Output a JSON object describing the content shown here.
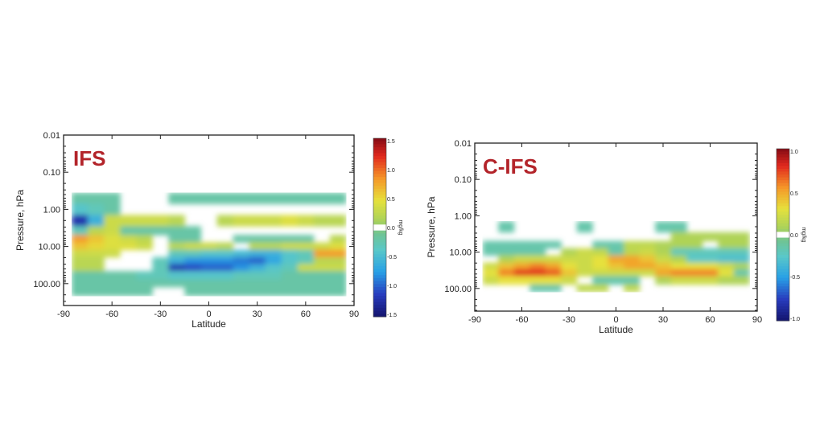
{
  "chart_data": [
    {
      "type": "heatmap",
      "title": "IFS",
      "xlabel": "Latitude",
      "ylabel": "Pressure, hPa",
      "x_ticks": [
        "-90",
        "-60",
        "-30",
        "0",
        "30",
        "60",
        "90"
      ],
      "y_ticks": [
        "0.01",
        "0.10",
        "1.00",
        "10.00",
        "100.00"
      ],
      "xlim": [
        -90,
        90
      ],
      "ylim_hPa": [
        0.01,
        400
      ],
      "y_scale": "log",
      "y_reversed": true,
      "colorbar": {
        "unit": "mg/kg",
        "range": [
          -1.5,
          1.5
        ],
        "ticks": [
          "1.5",
          "1.0",
          "0.5",
          "0.0",
          "-0.5",
          "-1.0",
          "-1.5"
        ],
        "colormap": "rainbow, white near zero"
      },
      "latitudes": [
        -80,
        -70,
        -60,
        -50,
        -40,
        -30,
        -20,
        -10,
        0,
        10,
        20,
        30,
        40,
        50,
        60,
        70,
        80
      ],
      "pressure_levels_hPa": [
        0.5,
        1,
        2,
        4,
        6,
        10,
        15,
        25,
        35,
        60,
        100,
        150
      ],
      "values": [
        [
          -0.2,
          -0.2,
          -0.2,
          null,
          null,
          null,
          -0.2,
          -0.2,
          -0.2,
          -0.2,
          -0.2,
          -0.2,
          -0.2,
          -0.2,
          -0.2,
          -0.2,
          -0.2
        ],
        [
          -0.4,
          -0.3,
          -0.2,
          null,
          null,
          null,
          null,
          null,
          null,
          null,
          null,
          null,
          null,
          null,
          null,
          null,
          null
        ],
        [
          -1.2,
          -0.6,
          0.3,
          0.3,
          0.3,
          0.3,
          0.2,
          null,
          null,
          0.2,
          0.3,
          0.3,
          0.3,
          0.4,
          0.3,
          0.2,
          0.2
        ],
        [
          -0.3,
          0.2,
          0.3,
          -0.2,
          -0.2,
          -0.2,
          -0.2,
          -0.2,
          null,
          null,
          null,
          null,
          null,
          null,
          null,
          null,
          null
        ],
        [
          0.8,
          0.6,
          0.4,
          0.3,
          0.2,
          null,
          -0.2,
          -0.2,
          null,
          null,
          -0.2,
          -0.2,
          -0.2,
          -0.2,
          -0.2,
          null,
          0.2
        ],
        [
          0.6,
          0.5,
          0.4,
          0.4,
          0.3,
          null,
          0.2,
          0.3,
          0.3,
          0.2,
          null,
          0.2,
          0.2,
          0.3,
          0.3,
          0.3,
          0.4
        ],
        [
          0.3,
          0.3,
          0.3,
          null,
          null,
          null,
          -0.3,
          -0.3,
          -0.4,
          -0.4,
          -0.5,
          -0.6,
          -0.6,
          -0.4,
          -0.3,
          0.8,
          0.8
        ],
        [
          0.2,
          0.2,
          null,
          null,
          null,
          -0.3,
          -0.6,
          -0.8,
          -0.8,
          -0.8,
          -0.9,
          -1.0,
          -0.7,
          -0.4,
          -0.3,
          0.2,
          0.2
        ],
        [
          0.2,
          0.2,
          null,
          null,
          null,
          -0.3,
          -1.2,
          -1.1,
          -1.0,
          -1.0,
          -0.8,
          -0.6,
          -0.4,
          -0.3,
          0.3,
          0.3,
          0.3
        ],
        [
          -0.2,
          -0.2,
          -0.2,
          -0.2,
          -0.3,
          -0.3,
          -0.4,
          -0.4,
          -0.4,
          -0.4,
          -0.3,
          -0.3,
          -0.3,
          -0.2,
          -0.2,
          -0.2,
          -0.2
        ],
        [
          -0.2,
          -0.2,
          -0.2,
          -0.2,
          -0.2,
          -0.2,
          -0.2,
          -0.2,
          -0.2,
          -0.2,
          -0.2,
          -0.2,
          -0.2,
          -0.2,
          -0.2,
          -0.2,
          -0.2
        ],
        [
          -0.2,
          -0.2,
          -0.2,
          -0.2,
          -0.2,
          null,
          null,
          -0.2,
          -0.2,
          -0.2,
          -0.2,
          -0.2,
          -0.2,
          -0.2,
          -0.2,
          -0.2,
          -0.2
        ]
      ]
    },
    {
      "type": "heatmap",
      "title": "C-IFS",
      "xlabel": "Latitude",
      "ylabel": "Pressure, hPa",
      "x_ticks": [
        "-90",
        "-60",
        "-30",
        "0",
        "30",
        "60",
        "90"
      ],
      "y_ticks": [
        "0.01",
        "0.10",
        "1.00",
        "10.00",
        "100.00"
      ],
      "xlim": [
        -90,
        90
      ],
      "ylim_hPa": [
        0.01,
        400
      ],
      "y_scale": "log",
      "y_reversed": true,
      "colorbar": {
        "unit": "mg/kg",
        "range": [
          -1.0,
          1.0
        ],
        "ticks": [
          "1.0",
          "0.5",
          "0.0",
          "-0.5",
          "-1.0"
        ],
        "colormap": "rainbow, white near zero"
      },
      "latitudes": [
        -80,
        -70,
        -60,
        -50,
        -40,
        -30,
        -20,
        -10,
        0,
        10,
        20,
        30,
        40,
        50,
        60,
        70,
        80
      ],
      "pressure_levels_hPa": [
        0.5,
        1,
        2,
        4,
        6,
        10,
        15,
        25,
        35,
        60,
        100,
        150
      ],
      "values": [
        [
          null,
          null,
          null,
          null,
          null,
          null,
          null,
          null,
          null,
          null,
          null,
          null,
          null,
          null,
          null,
          null,
          null
        ],
        [
          null,
          null,
          null,
          null,
          null,
          null,
          null,
          null,
          null,
          null,
          null,
          null,
          null,
          null,
          null,
          null,
          null
        ],
        [
          null,
          -0.15,
          null,
          null,
          null,
          null,
          -0.15,
          null,
          null,
          null,
          null,
          -0.15,
          -0.15,
          null,
          null,
          null,
          null
        ],
        [
          null,
          null,
          null,
          null,
          null,
          null,
          null,
          null,
          null,
          null,
          null,
          null,
          0.1,
          0.1,
          0.1,
          0.1,
          0.1
        ],
        [
          -0.15,
          -0.15,
          -0.15,
          -0.15,
          -0.15,
          null,
          null,
          -0.15,
          -0.15,
          0.15,
          0.15,
          0.1,
          0.1,
          0.1,
          null,
          0.1,
          0.1
        ],
        [
          -0.15,
          -0.15,
          -0.15,
          -0.15,
          null,
          0.1,
          0.2,
          0.15,
          -0.15,
          0.15,
          0.2,
          0.1,
          -0.2,
          -0.2,
          -0.2,
          -0.2,
          -0.2
        ],
        [
          null,
          0.1,
          0.2,
          0.2,
          0.2,
          0.2,
          0.2,
          0.3,
          0.5,
          0.5,
          0.4,
          0.2,
          0.1,
          -0.25,
          -0.25,
          -0.3,
          -0.3
        ],
        [
          0.2,
          0.4,
          0.5,
          0.6,
          0.5,
          0.3,
          0.2,
          0.3,
          0.4,
          0.5,
          0.5,
          0.4,
          0.3,
          0.3,
          0.3,
          0.2,
          0.1
        ],
        [
          0.3,
          0.6,
          0.8,
          0.8,
          0.7,
          0.4,
          0.2,
          0.2,
          0.2,
          0.2,
          0.2,
          0.5,
          0.6,
          0.6,
          0.6,
          0.3,
          -0.15
        ],
        [
          0.2,
          0.3,
          0.3,
          0.3,
          0.3,
          0.2,
          null,
          -0.15,
          -0.15,
          -0.15,
          null,
          0.1,
          0.2,
          0.2,
          0.2,
          0.1,
          0.1
        ],
        [
          null,
          null,
          null,
          -0.15,
          -0.15,
          null,
          0.15,
          0.15,
          null,
          0.15,
          null,
          null,
          null,
          null,
          null,
          null,
          null
        ],
        [
          null,
          null,
          null,
          null,
          null,
          null,
          null,
          null,
          null,
          null,
          null,
          null,
          null,
          null,
          null,
          null,
          null
        ]
      ]
    }
  ]
}
